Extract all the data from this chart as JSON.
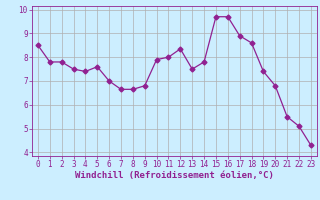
{
  "x": [
    0,
    1,
    2,
    3,
    4,
    5,
    6,
    7,
    8,
    9,
    10,
    11,
    12,
    13,
    14,
    15,
    16,
    17,
    18,
    19,
    20,
    21,
    22,
    23
  ],
  "y": [
    8.5,
    7.8,
    7.8,
    7.5,
    7.4,
    7.6,
    7.0,
    6.65,
    6.65,
    6.8,
    7.9,
    8.0,
    8.35,
    7.5,
    7.8,
    9.7,
    9.7,
    8.9,
    8.6,
    7.4,
    6.8,
    5.5,
    5.1,
    4.3
  ],
  "line_color": "#912191",
  "marker": "D",
  "marker_size": 2.5,
  "bg_color": "#cceeff",
  "grid_color": "#b0b0b0",
  "xlabel": "Windchill (Refroidissement éolien,°C)",
  "xlabel_color": "#912191",
  "ylim": [
    4,
    10
  ],
  "xlim_min": -0.5,
  "xlim_max": 23.5,
  "yticks": [
    4,
    5,
    6,
    7,
    8,
    9,
    10
  ],
  "xticks": [
    0,
    1,
    2,
    3,
    4,
    5,
    6,
    7,
    8,
    9,
    10,
    11,
    12,
    13,
    14,
    15,
    16,
    17,
    18,
    19,
    20,
    21,
    22,
    23
  ],
  "tick_color": "#912191",
  "tick_fontsize": 5.5,
  "xlabel_fontsize": 6.5
}
